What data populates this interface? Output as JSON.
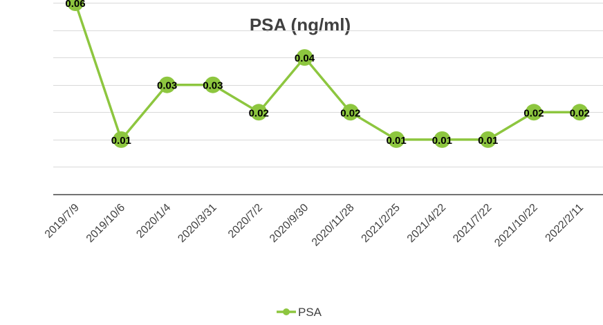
{
  "chart_data": {
    "type": "line",
    "title": "PSA  (ng/ml)",
    "categories": [
      "2019/7/9",
      "2019/10/6",
      "2020/1/4",
      "2020/3/31",
      "2020/7/2",
      "2020/9/30",
      "2020/11/28",
      "2021/2/25",
      "2021/4/22",
      "2021/7/22",
      "2021/10/22",
      "2022/2/11"
    ],
    "series": [
      {
        "name": "PSA",
        "values": [
          0.06,
          0.01,
          0.03,
          0.03,
          0.02,
          0.04,
          0.02,
          0.01,
          0.01,
          0.01,
          0.02,
          0.02
        ],
        "labels": [
          "0.06",
          "0.01",
          "0.03",
          "0.03",
          "0.02",
          "0.04",
          "0.02",
          "0.01",
          "0.01",
          "0.01",
          "0.02",
          "0.02"
        ],
        "color": "#8DC63F"
      }
    ],
    "ylim": [
      -0.01,
      0.06
    ],
    "grid": true,
    "legend": "bottom",
    "colors": {
      "grid": "#D9D9D9",
      "axis": "#404040"
    }
  }
}
